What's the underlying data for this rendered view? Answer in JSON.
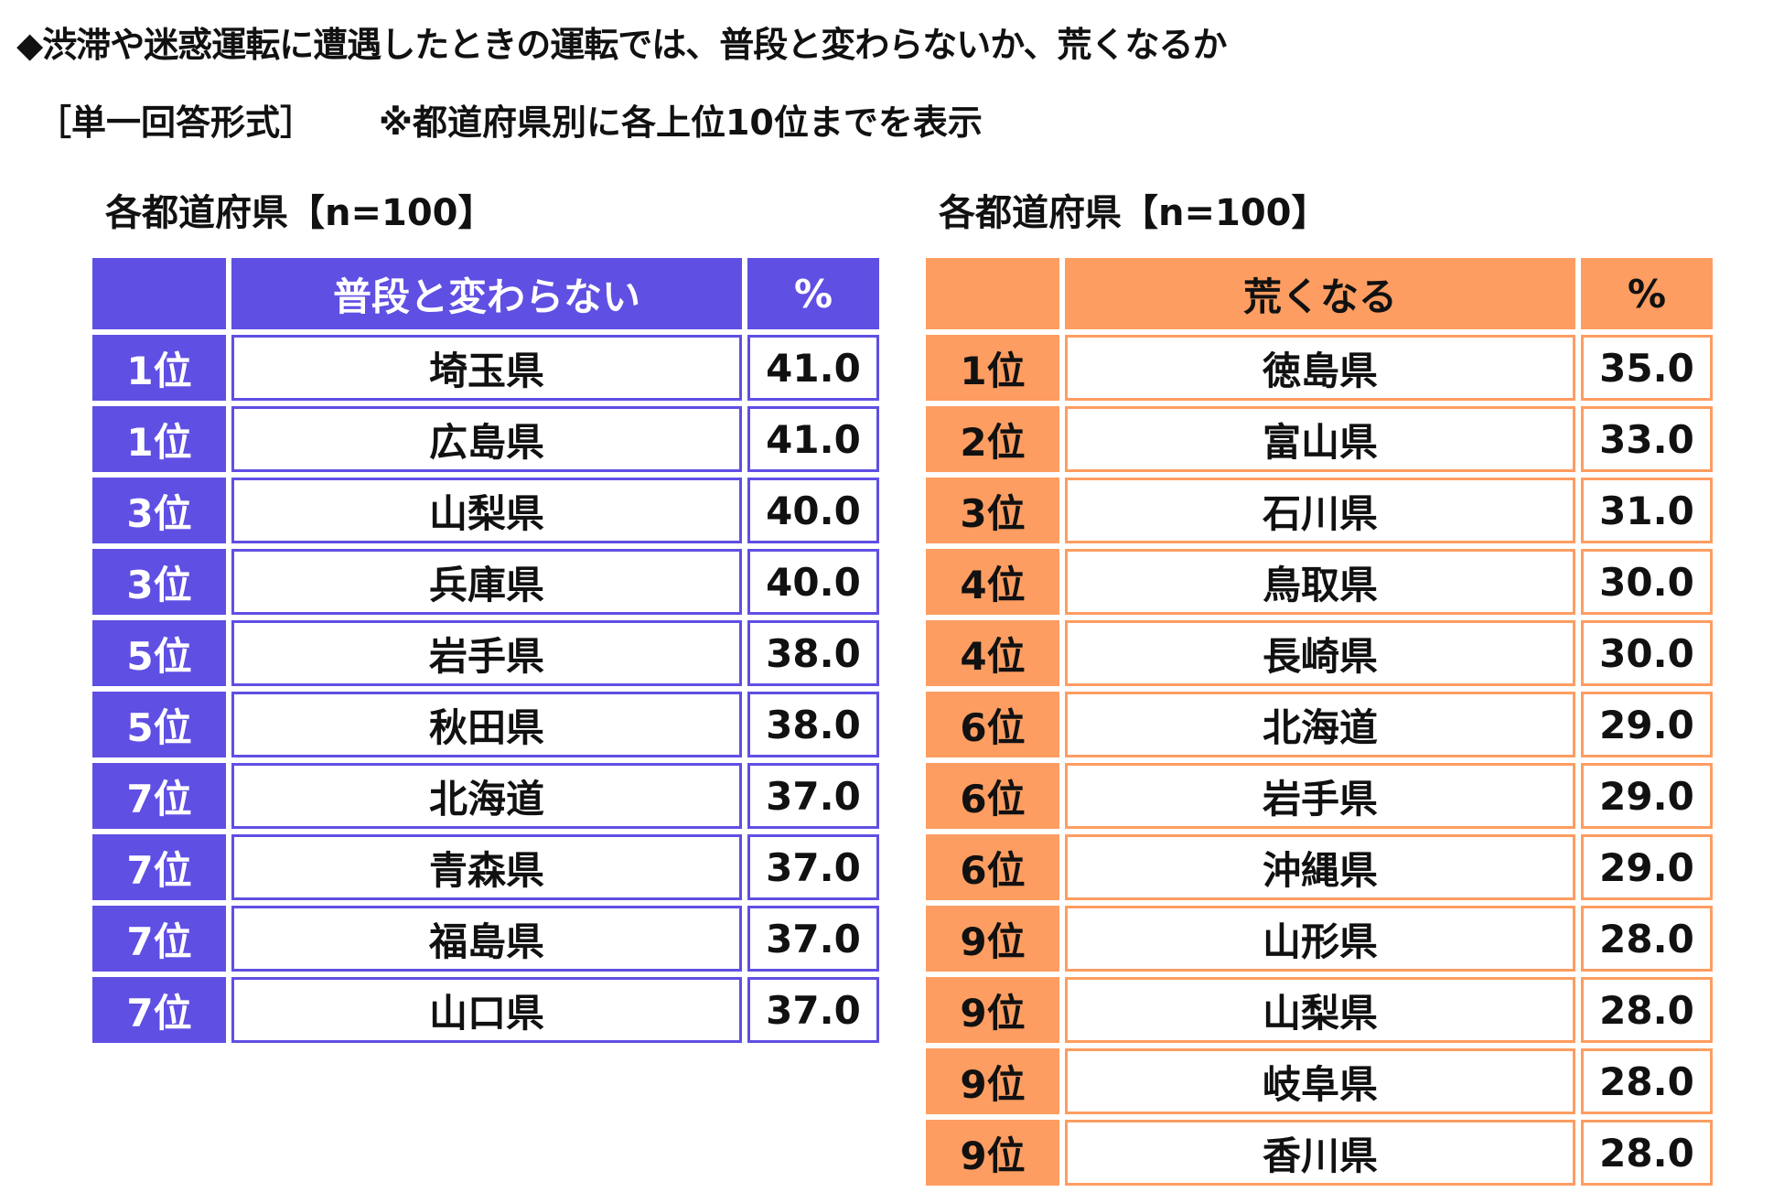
{
  "title": "◆渋滞や迷惑運転に遭遇したときの運転では、普段と変わらないか、荒くなるか",
  "subtitle": "［単一回答形式］",
  "note": "※都道府県別に各上位10位までを表示",
  "colors": {
    "left_accent": "#5f4fe3",
    "right_accent": "#fd9d61"
  },
  "tables": [
    {
      "section_title": "各都道府県【n=100】",
      "header": {
        "rank": "",
        "name": "普段と変わらない",
        "pct": "%"
      },
      "rows": [
        {
          "rank": "1位",
          "name": "埼玉県",
          "pct": "41.0"
        },
        {
          "rank": "1位",
          "name": "広島県",
          "pct": "41.0"
        },
        {
          "rank": "3位",
          "name": "山梨県",
          "pct": "40.0"
        },
        {
          "rank": "3位",
          "name": "兵庫県",
          "pct": "40.0"
        },
        {
          "rank": "5位",
          "name": "岩手県",
          "pct": "38.0"
        },
        {
          "rank": "5位",
          "name": "秋田県",
          "pct": "38.0"
        },
        {
          "rank": "7位",
          "name": "北海道",
          "pct": "37.0"
        },
        {
          "rank": "7位",
          "name": "青森県",
          "pct": "37.0"
        },
        {
          "rank": "7位",
          "name": "福島県",
          "pct": "37.0"
        },
        {
          "rank": "7位",
          "name": "山口県",
          "pct": "37.0"
        }
      ]
    },
    {
      "section_title": "各都道府県【n=100】",
      "header": {
        "rank": "",
        "name": "荒くなる",
        "pct": "%"
      },
      "rows": [
        {
          "rank": "1位",
          "name": "徳島県",
          "pct": "35.0"
        },
        {
          "rank": "2位",
          "name": "富山県",
          "pct": "33.0"
        },
        {
          "rank": "3位",
          "name": "石川県",
          "pct": "31.0"
        },
        {
          "rank": "4位",
          "name": "鳥取県",
          "pct": "30.0"
        },
        {
          "rank": "4位",
          "name": "長崎県",
          "pct": "30.0"
        },
        {
          "rank": "6位",
          "name": "北海道",
          "pct": "29.0"
        },
        {
          "rank": "6位",
          "name": "岩手県",
          "pct": "29.0"
        },
        {
          "rank": "6位",
          "name": "沖縄県",
          "pct": "29.0"
        },
        {
          "rank": "9位",
          "name": "山形県",
          "pct": "28.0"
        },
        {
          "rank": "9位",
          "name": "山梨県",
          "pct": "28.0"
        },
        {
          "rank": "9位",
          "name": "岐阜県",
          "pct": "28.0"
        },
        {
          "rank": "9位",
          "name": "香川県",
          "pct": "28.0"
        }
      ]
    }
  ]
}
